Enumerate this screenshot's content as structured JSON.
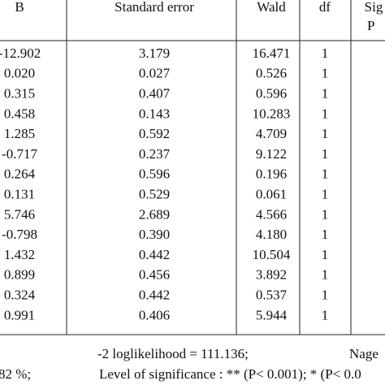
{
  "table": {
    "headers": [
      "B",
      "Standard error",
      "Wald",
      "df",
      "Sig"
    ],
    "header_second_line": "P",
    "rows": [
      [
        "-12.902",
        "3.179",
        "16.471",
        "1"
      ],
      [
        "0.020",
        "0.027",
        "0.526",
        "1"
      ],
      [
        "0.315",
        "0.407",
        "0.596",
        "1"
      ],
      [
        "0.458",
        "0.143",
        "10.283",
        "1"
      ],
      [
        "1.285",
        "0.592",
        "4.709",
        "1"
      ],
      [
        "-0.717",
        "0.237",
        "9.122",
        "1"
      ],
      [
        "0.264",
        "0.596",
        "0.196",
        "1"
      ],
      [
        "0.131",
        "0.529",
        "0.061",
        "1"
      ],
      [
        "5.746",
        "2.689",
        "4.566",
        "1"
      ],
      [
        "-0.798",
        "0.390",
        "4.180",
        "1"
      ],
      [
        "1.432",
        "0.442",
        "10.504",
        "1"
      ],
      [
        "0.899",
        "0.456",
        "3.892",
        "1"
      ],
      [
        "0.324",
        "0.442",
        "0.537",
        "1"
      ],
      [
        "0.991",
        "0.406",
        "5.944",
        "1"
      ]
    ]
  },
  "footer": {
    "loglikelihood": "-2 loglikelihood = 111.136;",
    "nagelkerke": "Nage",
    "percent": "82 %;",
    "significance": "Level of significance : ** (P< 0.001); * (P< 0.0"
  }
}
